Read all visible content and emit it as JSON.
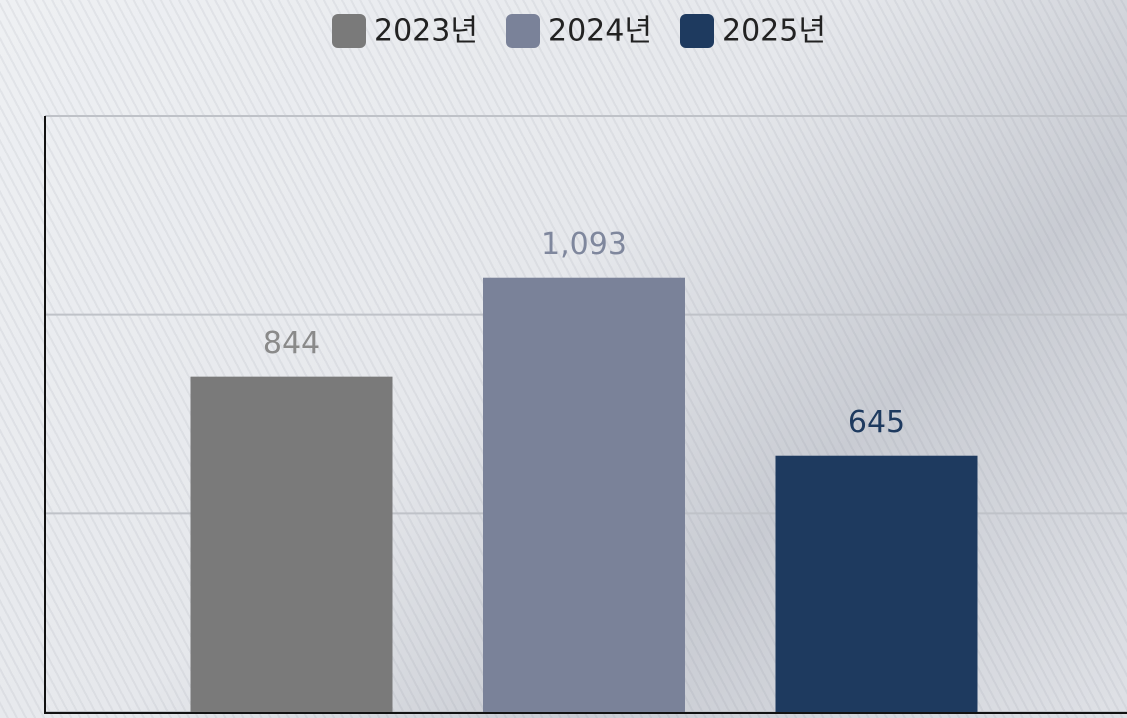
{
  "chart_data": {
    "type": "bar",
    "series": [
      {
        "name": "2023년",
        "color": "#7a7a7a",
        "label_color": "#8a8a8a",
        "values": [
          844
        ]
      },
      {
        "name": "2024년",
        "color": "#7a8299",
        "label_color": "#7f879d",
        "values": [
          1093
        ],
        "value_labels": [
          "1,093"
        ]
      },
      {
        "name": "2025년",
        "color": "#1e3a5f",
        "label_color": "#1e3a5f",
        "values": [
          645
        ]
      }
    ],
    "ylim": [
      0,
      1500
    ],
    "yticks": [
      0,
      500,
      1000,
      1500
    ],
    "grid": true,
    "legend": "top"
  }
}
